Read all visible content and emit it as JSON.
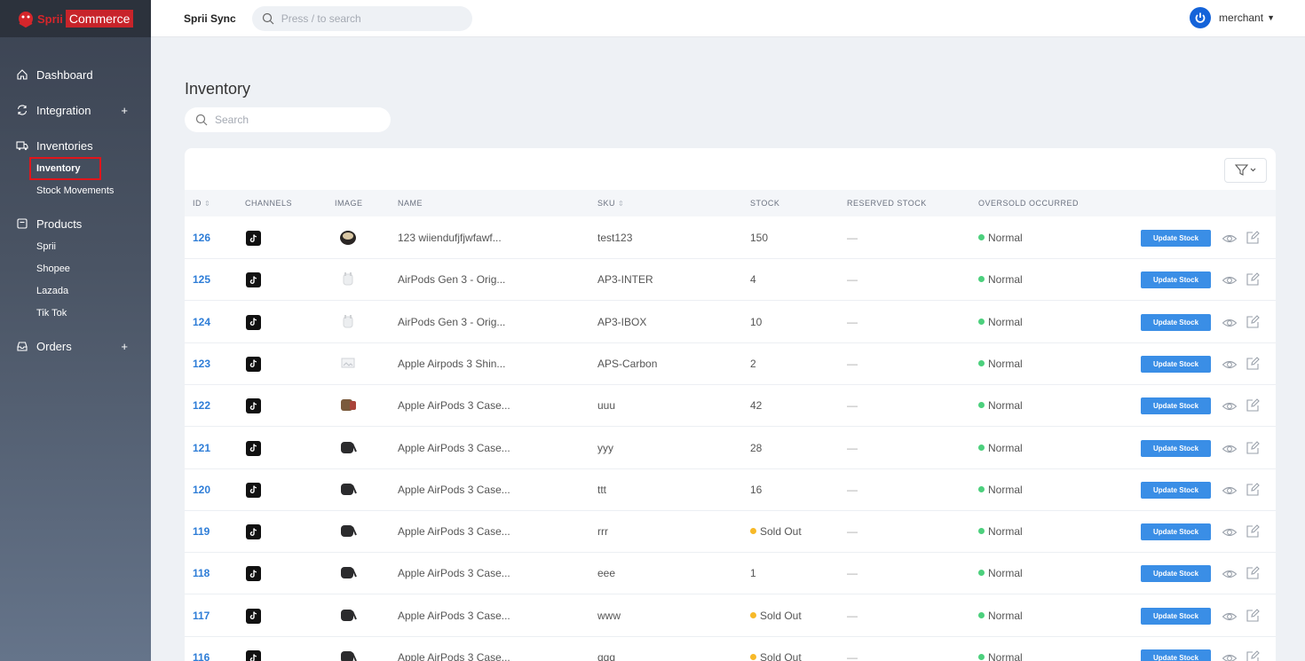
{
  "brand": {
    "name_part1": "Sprii",
    "name_part2": "Commerce"
  },
  "topbar": {
    "app_name": "Sprii Sync",
    "search_placeholder": "Press / to search",
    "user_name": "merchant"
  },
  "sidebar": {
    "dashboard": "Dashboard",
    "integration": "Integration",
    "inventories": "Inventories",
    "inventory": "Inventory",
    "stock_movements": "Stock Movements",
    "products": "Products",
    "sprii": "Sprii",
    "shopee": "Shopee",
    "lazada": "Lazada",
    "tiktok": "Tik Tok",
    "orders": "Orders",
    "plus": "+"
  },
  "page": {
    "title": "Inventory",
    "search_placeholder": "Search"
  },
  "table": {
    "headers": {
      "id": "ID",
      "channels": "CHANNELS",
      "image": "IMAGE",
      "name": "NAME",
      "sku": "SKU",
      "stock": "STOCK",
      "reserved": "RESERVED STOCK",
      "oversold": "OVERSOLD OCCURRED"
    },
    "action_label": "Update Stock",
    "rows": [
      {
        "id": "126",
        "name": "123 wiiendufjfjwfawf...",
        "sku": "test123",
        "stock": "150",
        "reserved": "—",
        "oversold": "Normal",
        "image": "coffee"
      },
      {
        "id": "125",
        "name": "AirPods Gen 3 - Orig...",
        "sku": "AP3-INTER",
        "stock": "4",
        "reserved": "—",
        "oversold": "Normal",
        "image": "airpods"
      },
      {
        "id": "124",
        "name": "AirPods Gen 3 - Orig...",
        "sku": "AP3-IBOX",
        "stock": "10",
        "reserved": "—",
        "oversold": "Normal",
        "image": "airpods"
      },
      {
        "id": "123",
        "name": "Apple Airpods 3 Shin...",
        "sku": "APS-Carbon",
        "stock": "2",
        "reserved": "—",
        "oversold": "Normal",
        "image": "placeholder"
      },
      {
        "id": "122",
        "name": "Apple AirPods 3 Case...",
        "sku": "uuu",
        "stock": "42",
        "reserved": "—",
        "oversold": "Normal",
        "image": "case-brown"
      },
      {
        "id": "121",
        "name": "Apple AirPods 3 Case...",
        "sku": "yyy",
        "stock": "28",
        "reserved": "—",
        "oversold": "Normal",
        "image": "case-black"
      },
      {
        "id": "120",
        "name": "Apple AirPods 3 Case...",
        "sku": "ttt",
        "stock": "16",
        "reserved": "—",
        "oversold": "Normal",
        "image": "case-black"
      },
      {
        "id": "119",
        "name": "Apple AirPods 3 Case...",
        "sku": "rrr",
        "stock": "Sold Out",
        "reserved": "—",
        "oversold": "Normal",
        "image": "case-black"
      },
      {
        "id": "118",
        "name": "Apple AirPods 3 Case...",
        "sku": "eee",
        "stock": "1",
        "reserved": "—",
        "oversold": "Normal",
        "image": "case-black"
      },
      {
        "id": "117",
        "name": "Apple AirPods 3 Case...",
        "sku": "www",
        "stock": "Sold Out",
        "reserved": "—",
        "oversold": "Normal",
        "image": "case-black"
      },
      {
        "id": "116",
        "name": "Apple AirPods 3 Case...",
        "sku": "qqq",
        "stock": "Sold Out",
        "reserved": "—",
        "oversold": "Normal",
        "image": "case-black"
      }
    ]
  },
  "colors": {
    "accent": "#3a8ee6",
    "normal_dot": "#4cd07d",
    "soldout_dot": "#f7b928",
    "brand_red": "#c8242a"
  }
}
